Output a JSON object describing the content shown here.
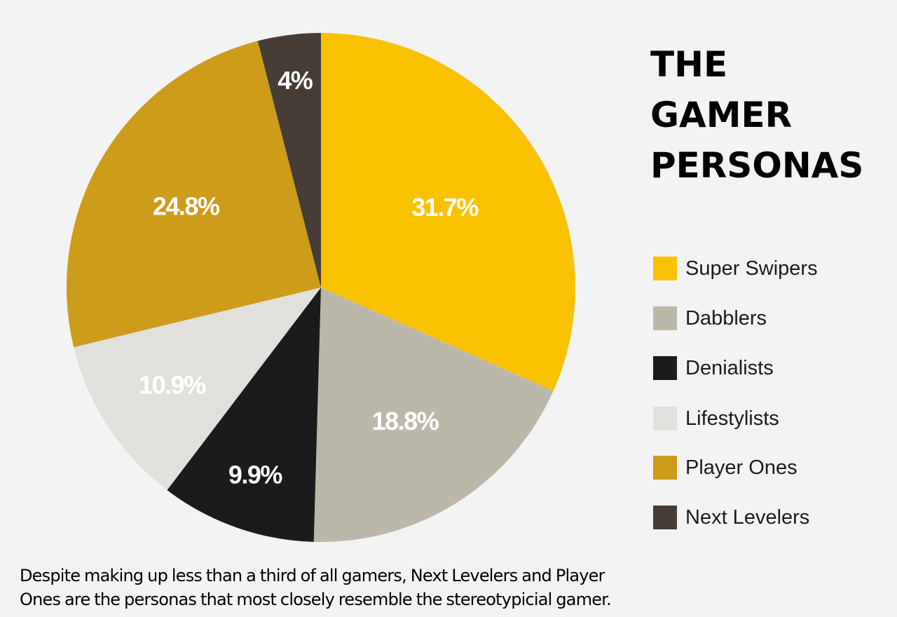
{
  "chart_data": {
    "type": "pie",
    "title": "THE GAMER PERSONAS",
    "title_lines": [
      "THE",
      "GAMER",
      "PERSONAS"
    ],
    "start": "12 o'clock",
    "direction": "clockwise",
    "slices": [
      {
        "name": "Super Swipers",
        "value": 31.7,
        "label": "31.7%",
        "color": "#f9c200"
      },
      {
        "name": "Dabblers",
        "value": 18.8,
        "label": "18.8%",
        "color": "#bbb8aa"
      },
      {
        "name": "Denialists",
        "value": 9.9,
        "label": "9.9%",
        "color": "#1b1b1d"
      },
      {
        "name": "Lifestylists",
        "value": 10.9,
        "label": "10.9%",
        "color": "#e1e0dc"
      },
      {
        "name": "Player Ones",
        "value": 24.8,
        "label": "24.8%",
        "color": "#cc9c1a"
      },
      {
        "name": "Next Levelers",
        "value": 4,
        "label": "4%",
        "color": "#463d36"
      }
    ],
    "legend": {
      "placement": "right",
      "entries": [
        {
          "name": "Super Swipers",
          "color": "#f9c200"
        },
        {
          "name": "Dabblers",
          "color": "#bbb8aa"
        },
        {
          "name": "Denialists",
          "color": "#1b1b1d"
        },
        {
          "name": "Lifestylists",
          "color": "#e1e0dc"
        },
        {
          "name": "Player Ones",
          "color": "#cc9c1a"
        },
        {
          "name": "Next Levelers",
          "color": "#463d36"
        }
      ]
    }
  },
  "caption": {
    "lines": [
      "Despite making up less than a third of all gamers, Next Levelers and Player",
      "Ones are the personas that most closely resemble the stereotypicial gamer."
    ]
  }
}
